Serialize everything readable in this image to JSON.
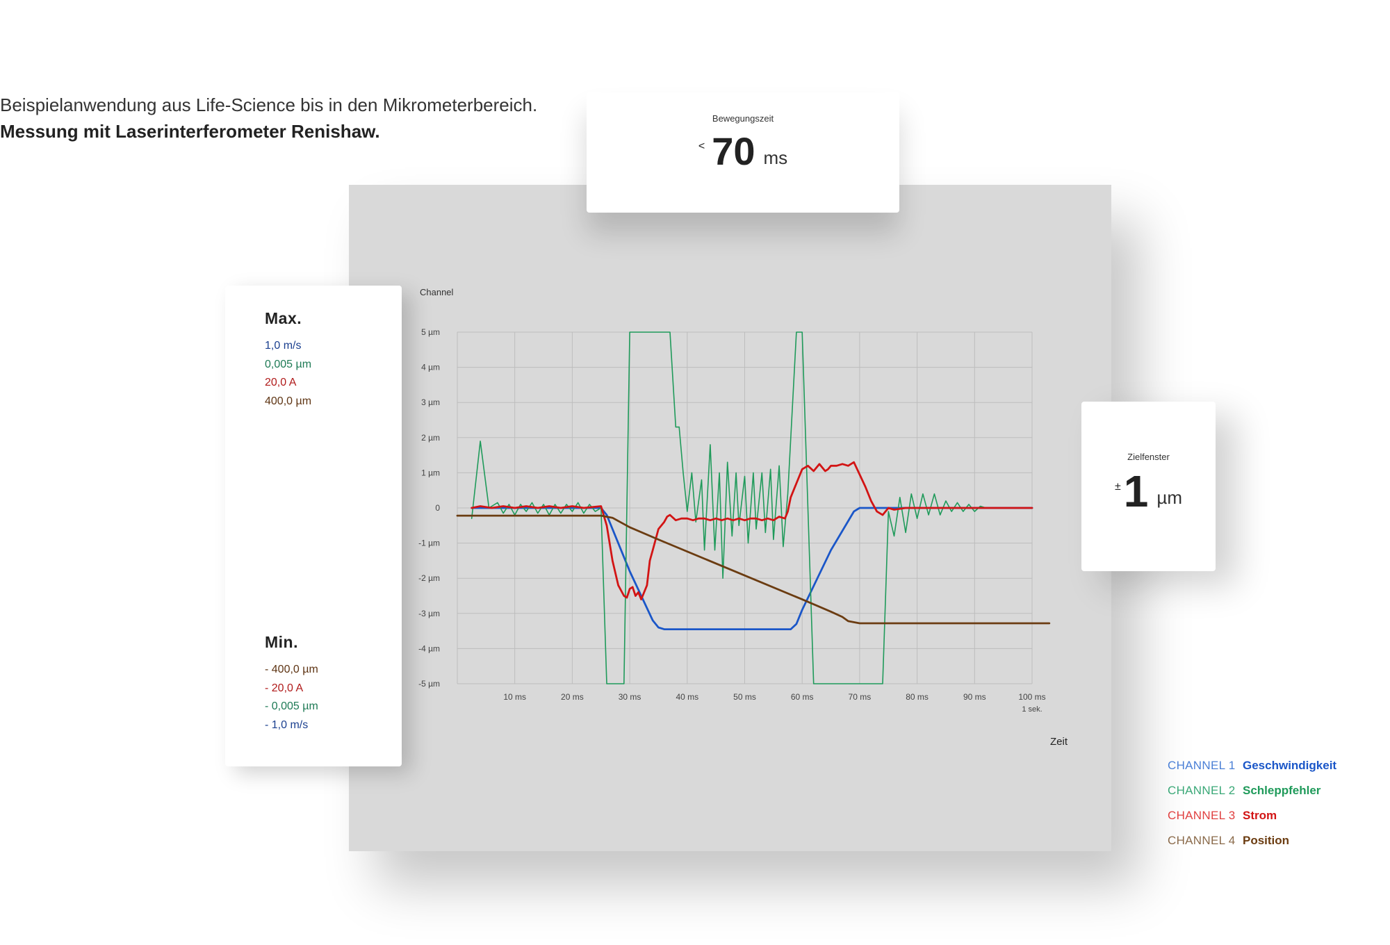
{
  "intro": {
    "line1": "Beispielanwendung aus Life-Science bis in den Mikrometerbereich.",
    "line2": "Messung mit Laserinterferometer Renishaw."
  },
  "motion_card": {
    "label": "Bewegungszeit",
    "prefix": "<",
    "value": "70",
    "unit": "ms"
  },
  "target_card": {
    "label": "Zielfenster",
    "prefix": "±",
    "value": "1",
    "unit": "µm"
  },
  "range_card": {
    "max_title": "Max.",
    "max_values": [
      "1,0 m/s",
      "0,005 µm",
      "20,0 A",
      "400,0 µm"
    ],
    "min_title": "Min.",
    "min_values": [
      "- 400,0 µm",
      "- 20,0 A",
      "- 0,005 µm",
      "- 1,0 m/s"
    ]
  },
  "legend": [
    {
      "channel": "CHANNEL 1",
      "name": "Geschwindigkeit",
      "light": "#4a7fd6",
      "dark": "#1a56c8"
    },
    {
      "channel": "CHANNEL 2",
      "name": "Schleppfehler",
      "light": "#3aa877",
      "dark": "#1f9a5a"
    },
    {
      "channel": "CHANNEL 3",
      "name": "Strom",
      "light": "#e04040",
      "dark": "#d21414"
    },
    {
      "channel": "CHANNEL 4",
      "name": "Position",
      "light": "#8a6a4a",
      "dark": "#6b3c11"
    }
  ],
  "chart_data": {
    "type": "line",
    "ylabel": "Channel",
    "xlabel": "Zeit",
    "xlim": [
      0,
      100
    ],
    "ylim": [
      -5,
      5
    ],
    "grid": true,
    "x_ticks": [
      {
        "v": 10,
        "label": "10 ms"
      },
      {
        "v": 20,
        "label": "20 ms"
      },
      {
        "v": 30,
        "label": "30 ms"
      },
      {
        "v": 40,
        "label": "40 ms"
      },
      {
        "v": 50,
        "label": "50 ms"
      },
      {
        "v": 60,
        "label": "60 ms"
      },
      {
        "v": 70,
        "label": "70 ms"
      },
      {
        "v": 80,
        "label": "80 ms"
      },
      {
        "v": 90,
        "label": "90 ms"
      },
      {
        "v": 100,
        "label": "100 ms",
        "sub": "1 sek."
      }
    ],
    "y_ticks": [
      {
        "v": 5,
        "label": "5 µm"
      },
      {
        "v": 4,
        "label": "4 µm"
      },
      {
        "v": 3,
        "label": "3 µm"
      },
      {
        "v": 2,
        "label": "2 µm"
      },
      {
        "v": 1,
        "label": "1 µm"
      },
      {
        "v": 0,
        "label": "0"
      },
      {
        "v": -1,
        "label": "-1 µm"
      },
      {
        "v": -2,
        "label": "-2 µm"
      },
      {
        "v": -3,
        "label": "-3 µm"
      },
      {
        "v": -4,
        "label": "-4 µm"
      },
      {
        "v": -5,
        "label": "-5 µm"
      }
    ],
    "series": [
      {
        "name": "Geschwindigkeit",
        "color": "#1a56c8",
        "points": [
          [
            2.5,
            0
          ],
          [
            25,
            0
          ],
          [
            26,
            -0.2
          ],
          [
            30,
            -1.8
          ],
          [
            34,
            -3.2
          ],
          [
            35,
            -3.4
          ],
          [
            36,
            -3.45
          ],
          [
            58,
            -3.45
          ],
          [
            59,
            -3.3
          ],
          [
            60,
            -2.9
          ],
          [
            65,
            -1.2
          ],
          [
            69,
            -0.1
          ],
          [
            70,
            0
          ],
          [
            100,
            0
          ]
        ]
      },
      {
        "name": "Schleppfehler",
        "color": "#1f9a5a",
        "points": [
          [
            2.5,
            -0.3
          ],
          [
            4,
            1.9
          ],
          [
            5.5,
            0
          ],
          [
            7,
            0.15
          ],
          [
            8,
            -0.15
          ],
          [
            9,
            0.1
          ],
          [
            10,
            -0.2
          ],
          [
            11,
            0.1
          ],
          [
            12,
            -0.1
          ],
          [
            13,
            0.15
          ],
          [
            14,
            -0.15
          ],
          [
            15,
            0.1
          ],
          [
            16,
            -0.2
          ],
          [
            17,
            0.1
          ],
          [
            18,
            -0.15
          ],
          [
            19,
            0.1
          ],
          [
            20,
            -0.1
          ],
          [
            21,
            0.15
          ],
          [
            22,
            -0.15
          ],
          [
            23,
            0.1
          ],
          [
            24,
            -0.1
          ],
          [
            25,
            0
          ],
          [
            26,
            -5
          ],
          [
            29,
            -5
          ],
          [
            30,
            5
          ],
          [
            37,
            5
          ],
          [
            38,
            2.3
          ],
          [
            38.6,
            2.3
          ],
          [
            39.3,
            1
          ],
          [
            40,
            -0.1
          ],
          [
            40.8,
            1
          ],
          [
            41.5,
            -0.4
          ],
          [
            42.5,
            0.8
          ],
          [
            43,
            -1.2
          ],
          [
            44,
            1.8
          ],
          [
            44.8,
            -1.2
          ],
          [
            45.6,
            1
          ],
          [
            46.2,
            -2
          ],
          [
            47,
            1.3
          ],
          [
            47.8,
            -0.8
          ],
          [
            48.5,
            1
          ],
          [
            49,
            -0.5
          ],
          [
            50,
            0.9
          ],
          [
            50.6,
            -1
          ],
          [
            51.5,
            1
          ],
          [
            52,
            -0.6
          ],
          [
            53,
            1
          ],
          [
            53.6,
            -0.7
          ],
          [
            54.5,
            1.1
          ],
          [
            55,
            -0.9
          ],
          [
            56,
            1.2
          ],
          [
            56.7,
            -1.1
          ],
          [
            57.5,
            0.4
          ],
          [
            59,
            5
          ],
          [
            60,
            5
          ],
          [
            62,
            -5
          ],
          [
            74,
            -5
          ],
          [
            75,
            -0.1
          ],
          [
            76,
            -0.8
          ],
          [
            77,
            0.3
          ],
          [
            78,
            -0.7
          ],
          [
            79,
            0.4
          ],
          [
            80,
            -0.3
          ],
          [
            81,
            0.4
          ],
          [
            82,
            -0.2
          ],
          [
            83,
            0.4
          ],
          [
            84,
            -0.2
          ],
          [
            85,
            0.2
          ],
          [
            86,
            -0.1
          ],
          [
            87,
            0.15
          ],
          [
            88,
            -0.1
          ],
          [
            89,
            0.1
          ],
          [
            90,
            -0.1
          ],
          [
            91,
            0.05
          ],
          [
            92,
            0
          ],
          [
            100,
            0
          ]
        ]
      },
      {
        "name": "Strom",
        "color": "#d21414",
        "points": [
          [
            2.5,
            0
          ],
          [
            4,
            0.05
          ],
          [
            6,
            0
          ],
          [
            8,
            0.05
          ],
          [
            10,
            0
          ],
          [
            12,
            0.05
          ],
          [
            14,
            0
          ],
          [
            16,
            0.05
          ],
          [
            18,
            0
          ],
          [
            20,
            0.05
          ],
          [
            22,
            0
          ],
          [
            25,
            0.05
          ],
          [
            26,
            -0.5
          ],
          [
            27,
            -1.5
          ],
          [
            28,
            -2.2
          ],
          [
            29,
            -2.5
          ],
          [
            29.5,
            -2.55
          ],
          [
            30,
            -2.3
          ],
          [
            30.5,
            -2.25
          ],
          [
            31,
            -2.5
          ],
          [
            31.5,
            -2.4
          ],
          [
            32,
            -2.6
          ],
          [
            33,
            -2.2
          ],
          [
            33.5,
            -1.5
          ],
          [
            34,
            -1.2
          ],
          [
            35,
            -0.6
          ],
          [
            36,
            -0.4
          ],
          [
            36.5,
            -0.25
          ],
          [
            37,
            -0.2
          ],
          [
            38,
            -0.35
          ],
          [
            39,
            -0.3
          ],
          [
            40,
            -0.3
          ],
          [
            41,
            -0.35
          ],
          [
            42,
            -0.3
          ],
          [
            43,
            -0.3
          ],
          [
            44,
            -0.35
          ],
          [
            45,
            -0.3
          ],
          [
            46,
            -0.35
          ],
          [
            47,
            -0.3
          ],
          [
            48,
            -0.35
          ],
          [
            49,
            -0.3
          ],
          [
            50,
            -0.35
          ],
          [
            51,
            -0.3
          ],
          [
            52,
            -0.3
          ],
          [
            53,
            -0.35
          ],
          [
            54,
            -0.3
          ],
          [
            55,
            -0.35
          ],
          [
            56,
            -0.25
          ],
          [
            57,
            -0.3
          ],
          [
            57.5,
            -0.1
          ],
          [
            58,
            0.3
          ],
          [
            59,
            0.7
          ],
          [
            60,
            1.1
          ],
          [
            61,
            1.2
          ],
          [
            62,
            1.05
          ],
          [
            63,
            1.25
          ],
          [
            64,
            1.05
          ],
          [
            64.5,
            1.1
          ],
          [
            65,
            1.2
          ],
          [
            66,
            1.2
          ],
          [
            67,
            1.25
          ],
          [
            68,
            1.2
          ],
          [
            69,
            1.3
          ],
          [
            70,
            0.95
          ],
          [
            71,
            0.6
          ],
          [
            72,
            0.2
          ],
          [
            73,
            -0.1
          ],
          [
            74,
            -0.2
          ],
          [
            75,
            0
          ],
          [
            76,
            -0.05
          ],
          [
            78,
            0
          ],
          [
            80,
            0
          ],
          [
            85,
            0
          ],
          [
            100,
            0
          ]
        ]
      },
      {
        "name": "Position",
        "color": "#6b3c11",
        "points": [
          [
            0,
            -0.22
          ],
          [
            25,
            -0.22
          ],
          [
            27,
            -0.28
          ],
          [
            30,
            -0.55
          ],
          [
            35,
            -0.9
          ],
          [
            60,
            -2.6
          ],
          [
            65,
            -2.95
          ],
          [
            67,
            -3.1
          ],
          [
            68,
            -3.22
          ],
          [
            70,
            -3.28
          ],
          [
            103,
            -3.28
          ]
        ]
      }
    ]
  }
}
